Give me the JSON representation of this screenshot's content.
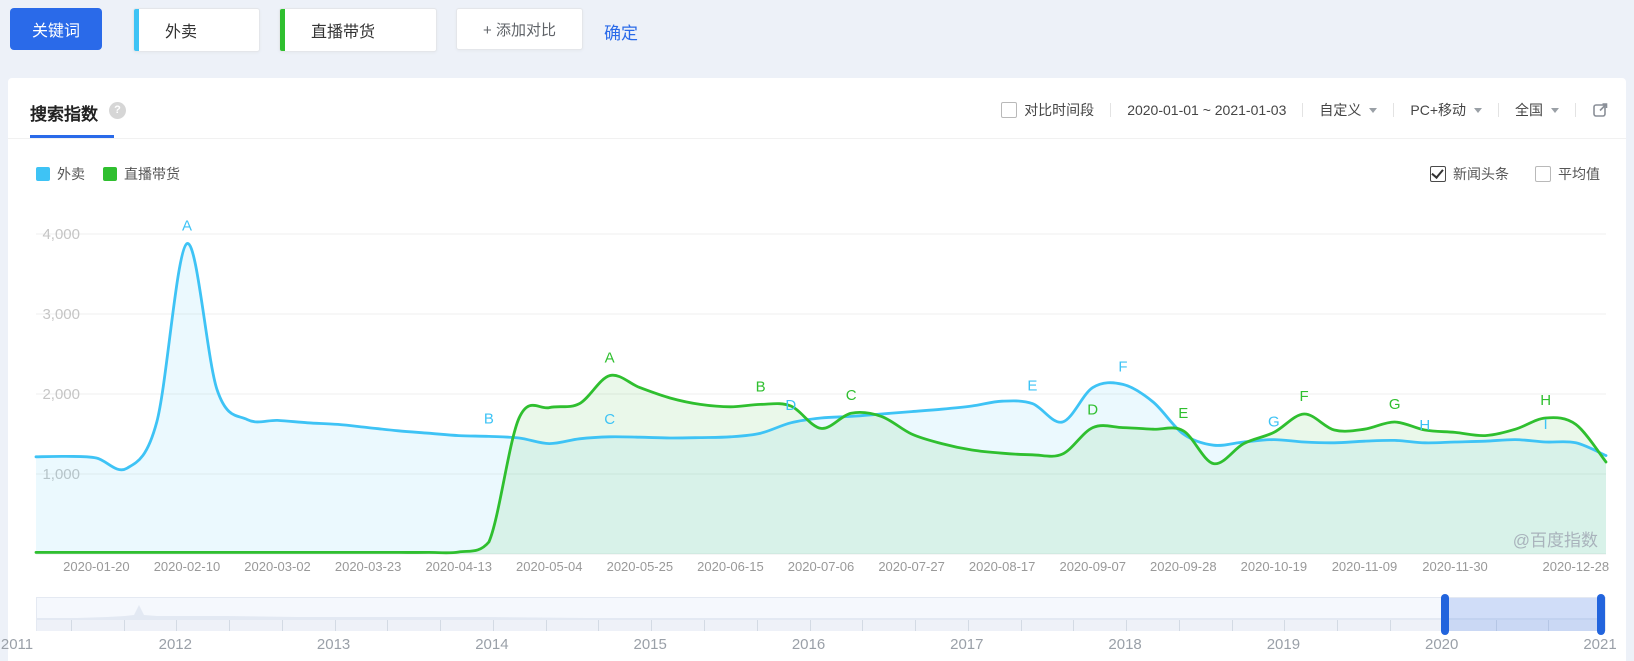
{
  "toolbar": {
    "keyword_button": "关键词",
    "keywords": [
      {
        "label": "外卖",
        "accent": "#3ec3f5"
      },
      {
        "label": "直播带货",
        "accent": "#2fbf2f"
      }
    ],
    "add_compare": "+ 添加对比",
    "confirm": "确定"
  },
  "panel": {
    "title": "搜索指数",
    "help_icon": "?",
    "compare_period_label": "对比时间段",
    "date_range": "2020-01-01 ~ 2021-01-03",
    "range_mode": "自定义",
    "device": "PC+移动",
    "region": "全国",
    "toggles": [
      {
        "label": "新闻头条",
        "checked": true
      },
      {
        "label": "平均值",
        "checked": false
      }
    ],
    "watermark": "@百度指数"
  },
  "chart_data": {
    "type": "line",
    "title": "搜索指数",
    "xlabel": "",
    "ylabel": "",
    "ylim": [
      0,
      4000
    ],
    "grid": true,
    "legend_position": "top-left",
    "y_ticks": [
      {
        "value": 4000,
        "label": "4,000"
      },
      {
        "value": 3000,
        "label": "3,000"
      },
      {
        "value": 2000,
        "label": "2,000"
      },
      {
        "value": 1000,
        "label": "1,000"
      }
    ],
    "x_tick_labels": [
      "2020-01-20",
      "2020-02-10",
      "2020-03-02",
      "2020-03-23",
      "2020-04-13",
      "2020-05-04",
      "2020-05-25",
      "2020-06-15",
      "2020-07-06",
      "2020-07-27",
      "2020-08-17",
      "2020-09-07",
      "2020-09-28",
      "2020-10-19",
      "2020-11-09",
      "2020-11-30",
      "2020-12-28"
    ],
    "x_tick_weeks": [
      2,
      5,
      8,
      11,
      14,
      17,
      20,
      23,
      26,
      29,
      32,
      35,
      38,
      41,
      44,
      47,
      51
    ],
    "series": [
      {
        "name": "外卖",
        "color": "#3ec3f5",
        "fill": "rgba(62,195,245,0.10)",
        "values": [
          1215,
          1220,
          1200,
          1070,
          1650,
          3880,
          2050,
          1680,
          1670,
          1640,
          1620,
          1580,
          1540,
          1510,
          1480,
          1470,
          1450,
          1380,
          1440,
          1465,
          1460,
          1450,
          1455,
          1465,
          1510,
          1640,
          1700,
          1720,
          1750,
          1780,
          1810,
          1850,
          1910,
          1880,
          1650,
          2080,
          2120,
          1900,
          1500,
          1360,
          1400,
          1430,
          1400,
          1390,
          1410,
          1420,
          1390,
          1400,
          1410,
          1430,
          1400,
          1390,
          1230
        ]
      },
      {
        "name": "直播带货",
        "color": "#2fbf2f",
        "fill": "rgba(47,191,47,0.10)",
        "values": [
          20,
          20,
          20,
          20,
          20,
          20,
          20,
          20,
          20,
          20,
          20,
          20,
          20,
          20,
          25,
          150,
          1700,
          1830,
          1880,
          2230,
          2080,
          1950,
          1870,
          1840,
          1870,
          1850,
          1570,
          1760,
          1720,
          1500,
          1380,
          1300,
          1260,
          1240,
          1250,
          1580,
          1580,
          1560,
          1540,
          1130,
          1380,
          1520,
          1750,
          1550,
          1560,
          1650,
          1550,
          1520,
          1480,
          1560,
          1700,
          1620,
          1150
        ]
      }
    ],
    "news_annotations": [
      {
        "series": 0,
        "letter": "A",
        "week": 5
      },
      {
        "series": 0,
        "letter": "B",
        "week": 15
      },
      {
        "series": 0,
        "letter": "C",
        "week": 19
      },
      {
        "series": 0,
        "letter": "D",
        "week": 25
      },
      {
        "series": 0,
        "letter": "E",
        "week": 33
      },
      {
        "series": 0,
        "letter": "F",
        "week": 36
      },
      {
        "series": 0,
        "letter": "G",
        "week": 41
      },
      {
        "series": 0,
        "letter": "H",
        "week": 46
      },
      {
        "series": 0,
        "letter": "I",
        "week": 50
      },
      {
        "series": 1,
        "letter": "A",
        "week": 19
      },
      {
        "series": 1,
        "letter": "B",
        "week": 24
      },
      {
        "series": 1,
        "letter": "C",
        "week": 27
      },
      {
        "series": 1,
        "letter": "D",
        "week": 35
      },
      {
        "series": 1,
        "letter": "E",
        "week": 38
      },
      {
        "series": 1,
        "letter": "F",
        "week": 42
      },
      {
        "series": 1,
        "letter": "G",
        "week": 45
      },
      {
        "series": 1,
        "letter": "H",
        "week": 50
      }
    ]
  },
  "minimap": {
    "years": [
      "2011",
      "2012",
      "2013",
      "2014",
      "2015",
      "2016",
      "2017",
      "2018",
      "2019",
      "2020",
      "2021"
    ],
    "selection": {
      "start": "2020",
      "end": "2021"
    },
    "profile": [
      [
        0,
        2
      ],
      [
        40,
        2
      ],
      [
        70,
        3
      ],
      [
        88,
        4
      ],
      [
        97,
        5
      ],
      [
        102,
        15
      ],
      [
        107,
        5
      ],
      [
        120,
        4
      ],
      [
        150,
        4
      ],
      [
        190,
        4
      ],
      [
        260,
        3
      ],
      [
        350,
        3
      ],
      [
        450,
        3
      ],
      [
        550,
        2
      ],
      [
        700,
        2
      ],
      [
        850,
        2
      ],
      [
        1000,
        2
      ],
      [
        1150,
        2
      ],
      [
        1300,
        2
      ],
      [
        1450,
        2
      ],
      [
        1570,
        2
      ]
    ]
  },
  "colors": {
    "accent_blue": "#2a6ae9",
    "series_blue": "#3ec3f5",
    "series_green": "#2fbf2f",
    "grid": "#efefef",
    "axis_text": "#999999",
    "handle_blue": "#2264dd"
  }
}
